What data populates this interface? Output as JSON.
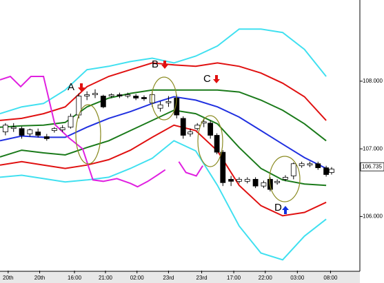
{
  "chart_data": {
    "type": "candlestick",
    "xlim": [
      0,
      66.2
    ],
    "ylim": [
      105.2,
      109.2
    ],
    "yticks": [
      {
        "value": 106,
        "label": "106.000"
      },
      {
        "value": 107,
        "label": "107.000"
      },
      {
        "value": 108,
        "label": "108.000"
      }
    ],
    "xticks": [
      {
        "value": 1.5,
        "label": "20th"
      },
      {
        "value": 7.3,
        "label": "20th"
      },
      {
        "value": 13.7,
        "label": "16:00"
      },
      {
        "value": 19.4,
        "label": "21:00"
      },
      {
        "value": 25.2,
        "label": "02:00"
      },
      {
        "value": 31,
        "label": "23rd"
      },
      {
        "value": 37.1,
        "label": "23rd"
      },
      {
        "value": 43,
        "label": "17:00"
      },
      {
        "value": 48.8,
        "label": "22:00"
      },
      {
        "value": 54.7,
        "label": "03:00"
      },
      {
        "value": 60.8,
        "label": "08:00"
      }
    ],
    "last_price": 106.735,
    "candles": {
      "x": [
        1,
        2.5,
        4,
        5.5,
        7,
        8.6,
        10,
        11.5,
        13,
        14.5,
        16,
        17.5,
        19,
        20.5,
        22,
        23.5,
        25,
        26.5,
        28,
        29.5,
        31,
        32.5,
        33.7,
        35,
        36.3,
        37.5,
        38.7,
        39.9,
        41,
        42.5,
        44,
        45.5,
        47,
        48.5,
        49.7,
        51,
        52.5,
        54,
        55.5,
        57,
        58.5,
        60,
        61
      ],
      "open": [
        107.25,
        107.3,
        107.3,
        107.22,
        107.25,
        107.18,
        107.27,
        107.28,
        107.32,
        107.5,
        107.78,
        107.8,
        107.78,
        107.78,
        107.8,
        107.78,
        107.78,
        107.76,
        107.68,
        107.6,
        107.68,
        107.75,
        107.45,
        107.22,
        107.3,
        107.38,
        107.38,
        107.2,
        106.95,
        106.55,
        106.52,
        106.52,
        106.55,
        106.45,
        106.55,
        106.5,
        106.55,
        106.6,
        106.75,
        106.76,
        106.78,
        106.72,
        106.65
      ],
      "high": [
        107.38,
        107.38,
        107.33,
        107.3,
        107.3,
        107.22,
        107.32,
        107.35,
        107.52,
        107.82,
        107.85,
        107.88,
        107.8,
        107.82,
        107.83,
        107.83,
        107.81,
        107.79,
        107.85,
        107.7,
        107.78,
        107.8,
        107.48,
        107.3,
        107.38,
        107.45,
        107.42,
        107.23,
        106.98,
        106.6,
        106.58,
        106.58,
        106.58,
        106.53,
        106.58,
        106.55,
        106.61,
        106.8,
        106.81,
        106.81,
        106.81,
        106.75,
        106.73
      ],
      "low": [
        107.2,
        107.25,
        107.15,
        107.18,
        107.17,
        107.12,
        107.24,
        107.25,
        107.3,
        107.45,
        107.72,
        107.75,
        107.6,
        107.75,
        107.75,
        107.75,
        107.72,
        107.71,
        107.62,
        107.55,
        107.62,
        107.45,
        107.15,
        107.18,
        107.27,
        107.32,
        107.15,
        106.92,
        106.45,
        106.45,
        106.49,
        106.49,
        106.42,
        106.42,
        106.37,
        106.47,
        106.52,
        106.55,
        106.72,
        106.73,
        106.69,
        106.59,
        106.62
      ],
      "close": [
        107.35,
        107.32,
        107.2,
        107.28,
        107.2,
        107.15,
        107.3,
        107.31,
        107.48,
        107.78,
        107.8,
        107.82,
        107.62,
        107.8,
        107.78,
        107.8,
        107.75,
        107.74,
        107.8,
        107.65,
        107.7,
        107.5,
        107.2,
        107.25,
        107.35,
        107.4,
        107.2,
        106.95,
        106.5,
        106.52,
        106.55,
        106.55,
        106.45,
        106.5,
        106.4,
        106.52,
        106.58,
        106.78,
        106.78,
        106.78,
        106.72,
        106.62,
        106.7
      ]
    },
    "series": [
      {
        "color": "#40e0f0",
        "x": [
          0,
          4,
          8,
          12,
          16,
          20,
          24,
          28,
          32,
          36,
          40,
          44,
          48,
          52,
          56,
          60
        ],
        "values": [
          107.52,
          107.62,
          107.67,
          107.87,
          108.17,
          108.22,
          108.29,
          108.34,
          108.27,
          108.37,
          108.52,
          108.77,
          108.77,
          108.72,
          108.47,
          108.07
        ]
      },
      {
        "color": "#e01010",
        "x": [
          0,
          4,
          8,
          12,
          16,
          20,
          24,
          28,
          32,
          36,
          40,
          44,
          48,
          52,
          56,
          60
        ],
        "values": [
          107.42,
          107.45,
          107.52,
          107.62,
          107.92,
          108.07,
          108.17,
          108.27,
          108.24,
          108.22,
          108.27,
          108.22,
          108.12,
          107.97,
          107.77,
          107.42
        ]
      },
      {
        "color": "#1a7a1a",
        "x": [
          0,
          4,
          8,
          12,
          16,
          20,
          24,
          28,
          32,
          36,
          40,
          44,
          48,
          52,
          56,
          60
        ],
        "values": [
          107.32,
          107.34,
          107.35,
          107.39,
          107.62,
          107.75,
          107.82,
          107.87,
          107.87,
          107.87,
          107.87,
          107.84,
          107.72,
          107.57,
          107.37,
          107.12
        ]
      },
      {
        "color": "#2030e0",
        "x": [
          0,
          4,
          8,
          12,
          16,
          20,
          24,
          28,
          32,
          36,
          40,
          44,
          48,
          52,
          56,
          60
        ],
        "values": [
          107.12,
          107.19,
          107.17,
          107.17,
          107.32,
          107.45,
          107.55,
          107.67,
          107.77,
          107.72,
          107.62,
          107.47,
          107.27,
          107.07,
          106.87,
          106.71
        ]
      },
      {
        "color": "#1a7a1a",
        "x": [
          0,
          4,
          8,
          12,
          16,
          20,
          24,
          28,
          32,
          36,
          40,
          44,
          48,
          52,
          56,
          60
        ],
        "values": [
          106.88,
          106.98,
          106.94,
          106.91,
          107.02,
          107.12,
          107.27,
          107.42,
          107.57,
          107.52,
          107.37,
          107.02,
          106.71,
          106.54,
          106.48,
          106.46
        ]
      },
      {
        "color": "#e01010",
        "x": [
          0,
          4,
          8,
          12,
          16,
          20,
          24,
          28,
          32,
          36,
          40,
          44,
          48,
          52,
          56,
          60
        ],
        "values": [
          106.76,
          106.81,
          106.76,
          106.71,
          106.76,
          106.84,
          106.98,
          107.17,
          107.35,
          107.27,
          106.97,
          106.46,
          106.16,
          106.01,
          106.06,
          106.21
        ]
      },
      {
        "color": "#40e0f0",
        "x": [
          0,
          4,
          8,
          12,
          16,
          20,
          24,
          28,
          32,
          36,
          40,
          44,
          48,
          52,
          56,
          60
        ],
        "values": [
          106.58,
          106.61,
          106.56,
          106.51,
          106.54,
          106.58,
          106.71,
          106.86,
          107.12,
          106.97,
          106.46,
          105.86,
          105.46,
          105.36,
          105.71,
          105.96
        ]
      },
      {
        "color": "#e020e0",
        "x": [
          0,
          1.9,
          3.8,
          5.7,
          8,
          10.1,
          12.7,
          15.2,
          17.1,
          19,
          21.5,
          24,
          25.3,
          27.2,
          29.1,
          30.4,
          31.5,
          32.9,
          34.2,
          36.1,
          37.3
        ],
        "values": [
          108.02,
          108.07,
          107.92,
          108.07,
          108.07,
          107.36,
          107.16,
          107.0,
          106.54,
          106.52,
          106.56,
          106.49,
          106.44,
          106.52,
          106.62,
          106.69,
          null,
          106.81,
          106.65,
          106.6,
          106.75
        ]
      }
    ],
    "annotations": [
      "A",
      "B",
      "C",
      "D"
    ]
  }
}
